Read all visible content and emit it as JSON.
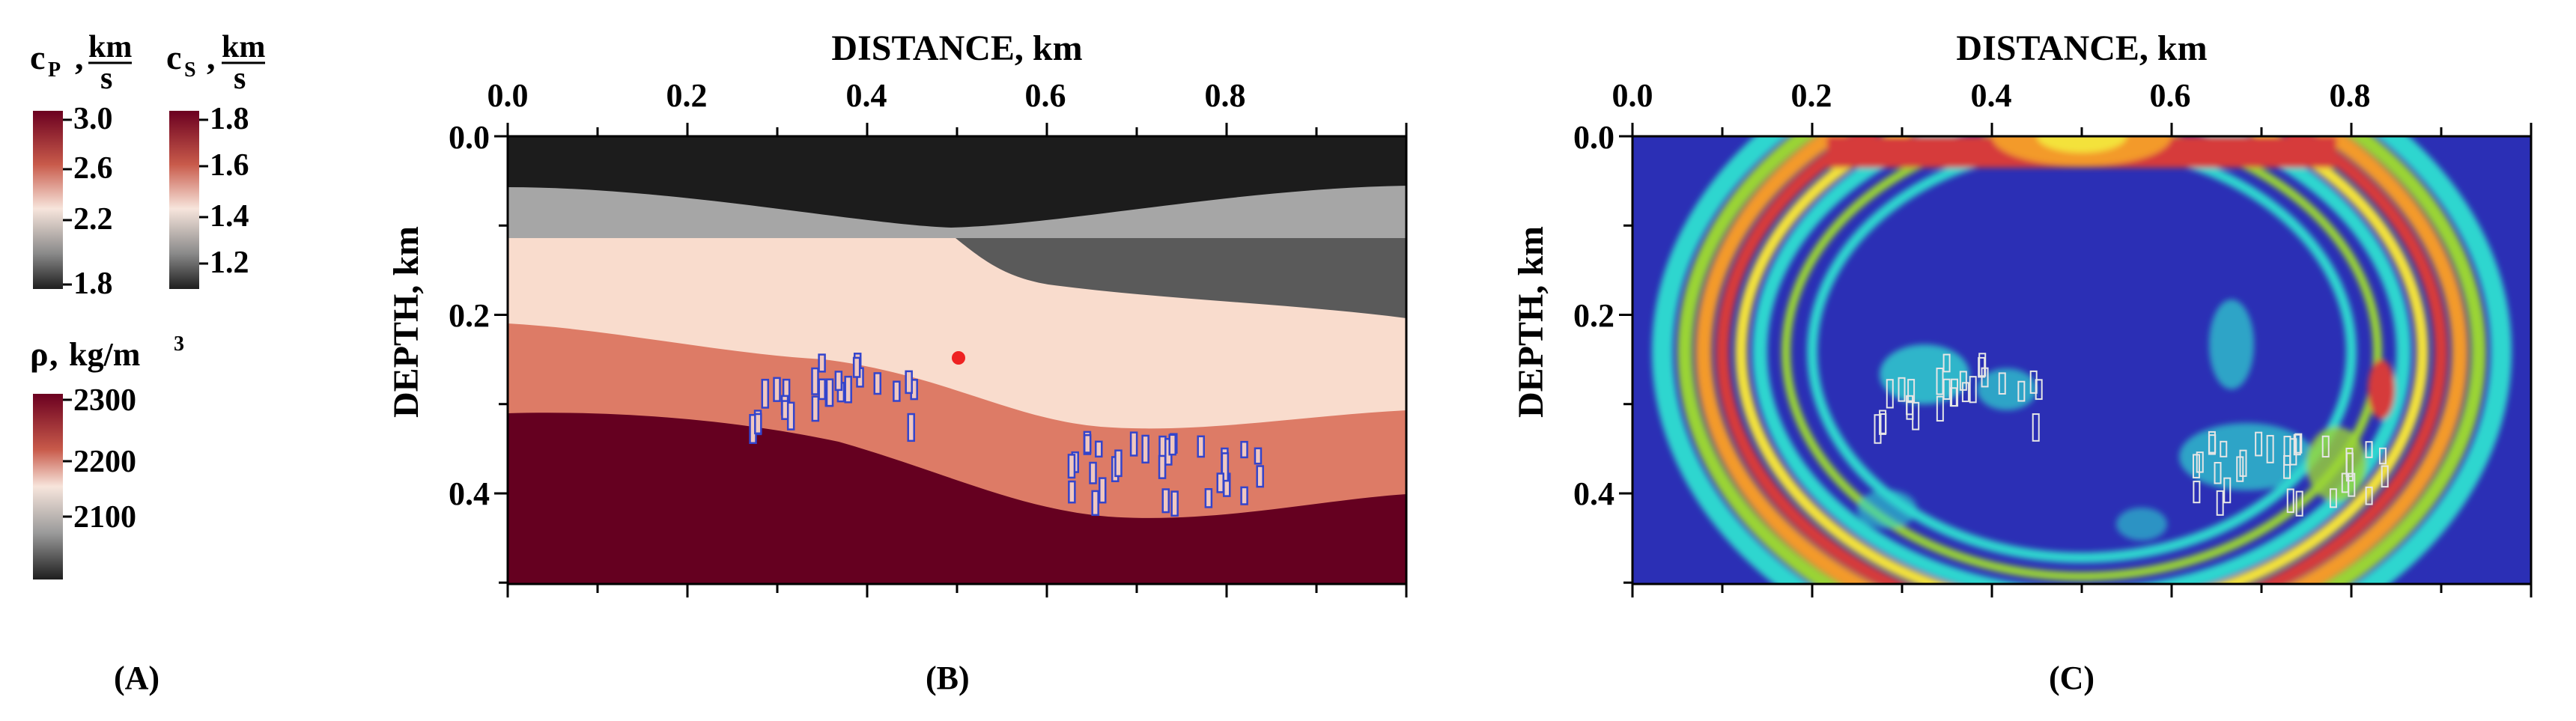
{
  "panels": {
    "A": {
      "label": "(A)",
      "colorbar_cp": {
        "symbol": "c",
        "subscript": "P",
        "unit_num": "km",
        "unit_den": "s",
        "ticks": [
          "3.0",
          "2.6",
          "2.2",
          "1.8"
        ]
      },
      "colorbar_cs": {
        "symbol": "c",
        "subscript": "S",
        "unit_num": "km",
        "unit_den": "s",
        "ticks": [
          "1.8",
          "1.6",
          "1.4",
          "1.2"
        ]
      },
      "colorbar_rho": {
        "symbol": "ρ",
        "unit": "kg/m",
        "unit_power": "3",
        "ticks": [
          "2300",
          "2200",
          "2100"
        ]
      },
      "colors": {
        "high": "#6b0020",
        "mid_high": "#c85040",
        "mid": "#f5ddd0",
        "low": "#8a8a8a",
        "lowest": "#222222"
      }
    },
    "B": {
      "label": "(B)",
      "x_axis_title": "DISTANCE, km",
      "y_axis_title": "DEPTH, km",
      "x_ticks": [
        "0.0",
        "0.2",
        "0.4",
        "0.6",
        "0.8"
      ],
      "y_ticks": [
        "0.0",
        "0.2",
        "0.4"
      ],
      "layer_colors": [
        "#1c1c1c",
        "#a6a6a6",
        "#5a5a5a",
        "#f9dccd",
        "#dd7b66",
        "#650020"
      ],
      "source_color": "#ee2222",
      "fracture_color": "#3344cc"
    },
    "C": {
      "label": "(C)",
      "x_axis_title": "DISTANCE, km",
      "y_axis_title": "DEPTH, km",
      "x_ticks": [
        "0.0",
        "0.2",
        "0.4",
        "0.6",
        "0.8"
      ],
      "y_ticks": [
        "0.0",
        "0.2",
        "0.4"
      ],
      "colors": {
        "background": "#2b2fb5",
        "cyan": "#2fd6cf",
        "green": "#9ad435",
        "yellow": "#f3e23b",
        "orange": "#f39a2b",
        "red": "#d63a3a"
      }
    }
  }
}
